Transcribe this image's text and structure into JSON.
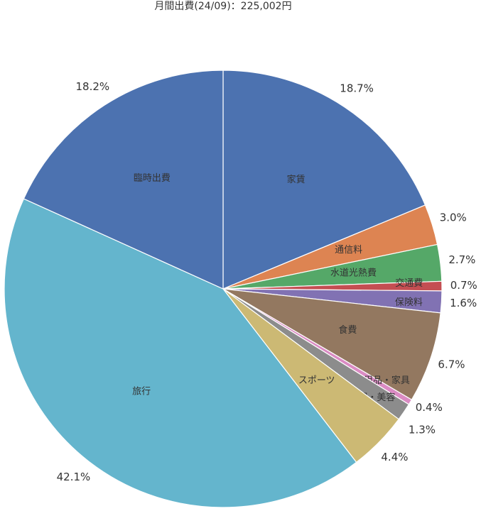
{
  "chart_data": {
    "type": "pie",
    "title": "月間出費(24/09)：225,002円",
    "slices": [
      {
        "name": "家賃",
        "percent": 18.7,
        "label": "18.7%",
        "color": "#4c72b0"
      },
      {
        "name": "通信料",
        "percent": 3.0,
        "label": "3.0%",
        "color": "#dd8452"
      },
      {
        "name": "水道光熱費",
        "percent": 2.7,
        "label": "2.7%",
        "color": "#55a868"
      },
      {
        "name": "交通費",
        "percent": 0.7,
        "label": "0.7%",
        "color": "#c44e52"
      },
      {
        "name": "保険料",
        "percent": 1.6,
        "label": "1.6%",
        "color": "#8172b3"
      },
      {
        "name": "食費",
        "percent": 6.7,
        "label": "6.7%",
        "color": "#937860"
      },
      {
        "name": "日用品・家具",
        "percent": 0.4,
        "label": "0.4%",
        "color": "#da8bc3"
      },
      {
        "name": "服・美容",
        "percent": 1.3,
        "label": "1.3%",
        "color": "#8c8c8c"
      },
      {
        "name": "スポーツ",
        "percent": 4.4,
        "label": "4.4%",
        "color": "#ccb974"
      },
      {
        "name": "旅行",
        "percent": 42.1,
        "label": "42.1%",
        "color": "#64b5cd"
      },
      {
        "name": "臨時出費",
        "percent": 18.2,
        "label": "18.2%",
        "color": "#4c72b0"
      }
    ]
  }
}
